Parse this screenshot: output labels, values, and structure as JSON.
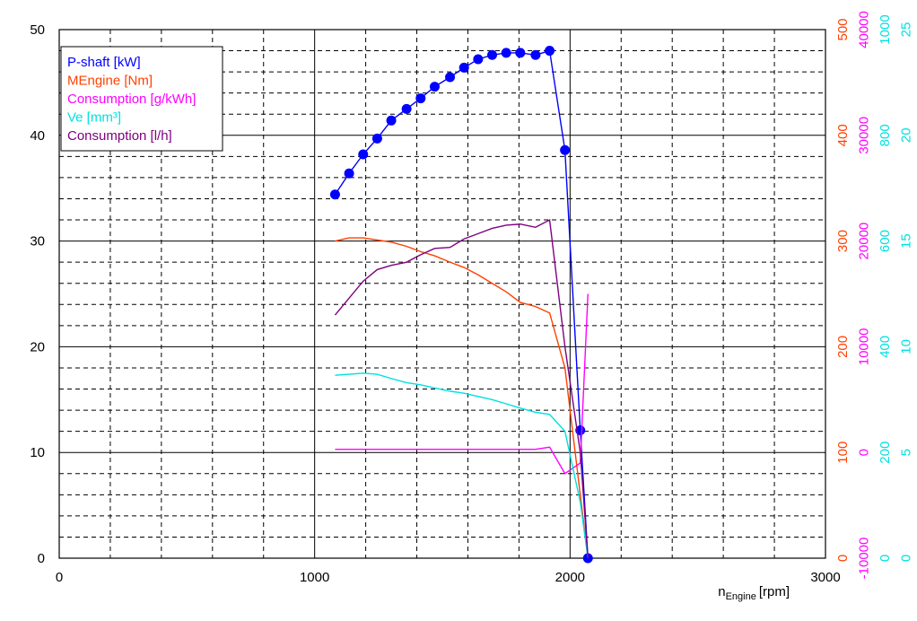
{
  "chart_data": {
    "type": "line",
    "xlabel": {
      "main": "n",
      "sub": "Engine",
      "unit": "[rpm]"
    },
    "xlim": [
      0,
      3000
    ],
    "xticks": [
      0,
      1000,
      2000,
      3000
    ],
    "ylim": [
      0,
      50
    ],
    "yticks": [
      0,
      10,
      20,
      30,
      40,
      50
    ],
    "y2lim": [
      0,
      500
    ],
    "y2ticks": [
      0,
      100,
      200,
      300,
      400,
      500
    ],
    "y2color": "#ff4000",
    "y3lim": [
      -10000,
      40000
    ],
    "y3ticks": [
      -10000,
      0,
      10000,
      20000,
      30000,
      40000
    ],
    "y3color": "#ff00ff",
    "y4lim": [
      0,
      1000
    ],
    "y4ticks": [
      0,
      200,
      400,
      600,
      800,
      1000
    ],
    "y4color": "#00e0e0",
    "y5lim": [
      0,
      25
    ],
    "y5ticks": [
      0,
      5,
      10,
      15,
      20,
      25
    ],
    "y5color": "#00e0e0",
    "grid": true,
    "series": [
      {
        "name": "P-shaft [kW]",
        "color": "#0000ff",
        "axis": "y",
        "markers": true,
        "x": [
          1080,
          1135,
          1190,
          1245,
          1300,
          1360,
          1415,
          1470,
          1530,
          1585,
          1640,
          1695,
          1750,
          1805,
          1865,
          1920,
          1980,
          2040,
          2070
        ],
        "values": [
          34.4,
          36.4,
          38.2,
          39.7,
          41.4,
          42.5,
          43.5,
          44.6,
          45.5,
          46.4,
          47.2,
          47.6,
          47.8,
          47.8,
          47.6,
          48.0,
          38.6,
          12.1,
          0
        ]
      },
      {
        "name": "MEngine [Nm]",
        "color": "#ff4000",
        "axis": "y2",
        "markers": false,
        "x": [
          1080,
          1135,
          1190,
          1245,
          1300,
          1360,
          1415,
          1470,
          1530,
          1585,
          1640,
          1695,
          1750,
          1805,
          1865,
          1920,
          1980,
          2040,
          2070
        ],
        "values": [
          300,
          303,
          303,
          301,
          299,
          295,
          290,
          286,
          280,
          275,
          268,
          260,
          252,
          242,
          238,
          232,
          180,
          60,
          0
        ]
      },
      {
        "name": "Consumption [g/kWh]",
        "color": "#ff00ff",
        "axis": "y3",
        "markers": false,
        "x": [
          1080,
          1135,
          1190,
          1245,
          1300,
          1360,
          1415,
          1470,
          1530,
          1585,
          1640,
          1695,
          1750,
          1805,
          1865,
          1920,
          1980,
          2040,
          2070
        ],
        "values": [
          300,
          300,
          300,
          300,
          300,
          300,
          300,
          300,
          300,
          300,
          300,
          300,
          300,
          300,
          300,
          500,
          -2000,
          -1000,
          15000
        ]
      },
      {
        "name": "Ve [mm³]",
        "color": "#00e0e0",
        "axis": "y4",
        "markers": false,
        "x": [
          1080,
          1135,
          1190,
          1245,
          1300,
          1360,
          1415,
          1470,
          1530,
          1585,
          1640,
          1695,
          1750,
          1805,
          1865,
          1920,
          1980,
          2040,
          2070
        ],
        "values": [
          346,
          348,
          350,
          348,
          340,
          332,
          328,
          322,
          316,
          312,
          306,
          300,
          292,
          284,
          276,
          272,
          240,
          106,
          0
        ]
      },
      {
        "name": "Consumption [l/h]",
        "color": "#800080",
        "axis": "y5",
        "markers": false,
        "x": [
          1080,
          1135,
          1190,
          1245,
          1300,
          1360,
          1415,
          1470,
          1530,
          1585,
          1640,
          1695,
          1750,
          1805,
          1865,
          1920,
          1980,
          2040,
          2070
        ],
        "values": [
          11.5,
          12.3,
          13.1,
          13.65,
          13.85,
          14.0,
          14.35,
          14.65,
          14.7,
          15.1,
          15.35,
          15.6,
          15.75,
          15.8,
          15.65,
          16.0,
          10.0,
          5.0,
          0
        ]
      }
    ]
  }
}
